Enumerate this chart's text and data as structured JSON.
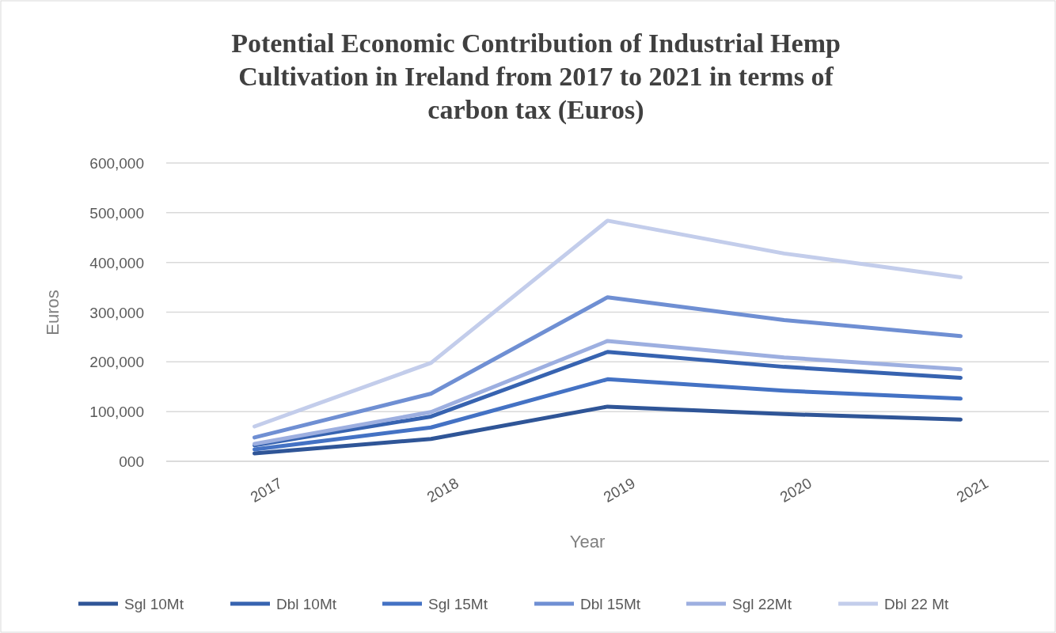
{
  "chart_data": {
    "type": "line",
    "title": "Potential Economic Contribution of Industrial Hemp Cultivation in Ireland from 2017 to 2021 in terms of carbon tax (Euros)",
    "xlabel": "Year",
    "ylabel": "Euros",
    "categories": [
      "2017",
      "2018",
      "2019",
      "2020",
      "2021"
    ],
    "series": [
      {
        "name": "Sgl 10Mt",
        "color": "#2f5597",
        "values": [
          16000,
          45000,
          110000,
          95000,
          84000
        ]
      },
      {
        "name": "Dbl 10Mt",
        "color": "#3763b0",
        "values": [
          32000,
          90000,
          220000,
          190000,
          168000
        ]
      },
      {
        "name": "Sgl 15Mt",
        "color": "#4472c4",
        "values": [
          24000,
          68000,
          165000,
          142000,
          126000
        ]
      },
      {
        "name": "Dbl 15Mt",
        "color": "#6f8fd3",
        "values": [
          48000,
          136000,
          330000,
          284000,
          252000
        ]
      },
      {
        "name": "Sgl 22Mt",
        "color": "#9dafe0",
        "values": [
          35000,
          99000,
          242000,
          209000,
          185000
        ]
      },
      {
        "name": "Dbl 22 Mt",
        "color": "#c3cdeb",
        "values": [
          70000,
          198000,
          484000,
          418000,
          370000
        ]
      }
    ],
    "ylim": [
      0,
      600000
    ],
    "yticks": [
      {
        "value": 0,
        "label": "000"
      },
      {
        "value": 100000,
        "label": "100,000"
      },
      {
        "value": 200000,
        "label": "200,000"
      },
      {
        "value": 300000,
        "label": "300,000"
      },
      {
        "value": 400000,
        "label": "400,000"
      },
      {
        "value": 500000,
        "label": "500,000"
      },
      {
        "value": 600000,
        "label": "600,000"
      }
    ],
    "grid": "y",
    "legend": "bottom",
    "marker": "none",
    "line_style": "solid"
  }
}
